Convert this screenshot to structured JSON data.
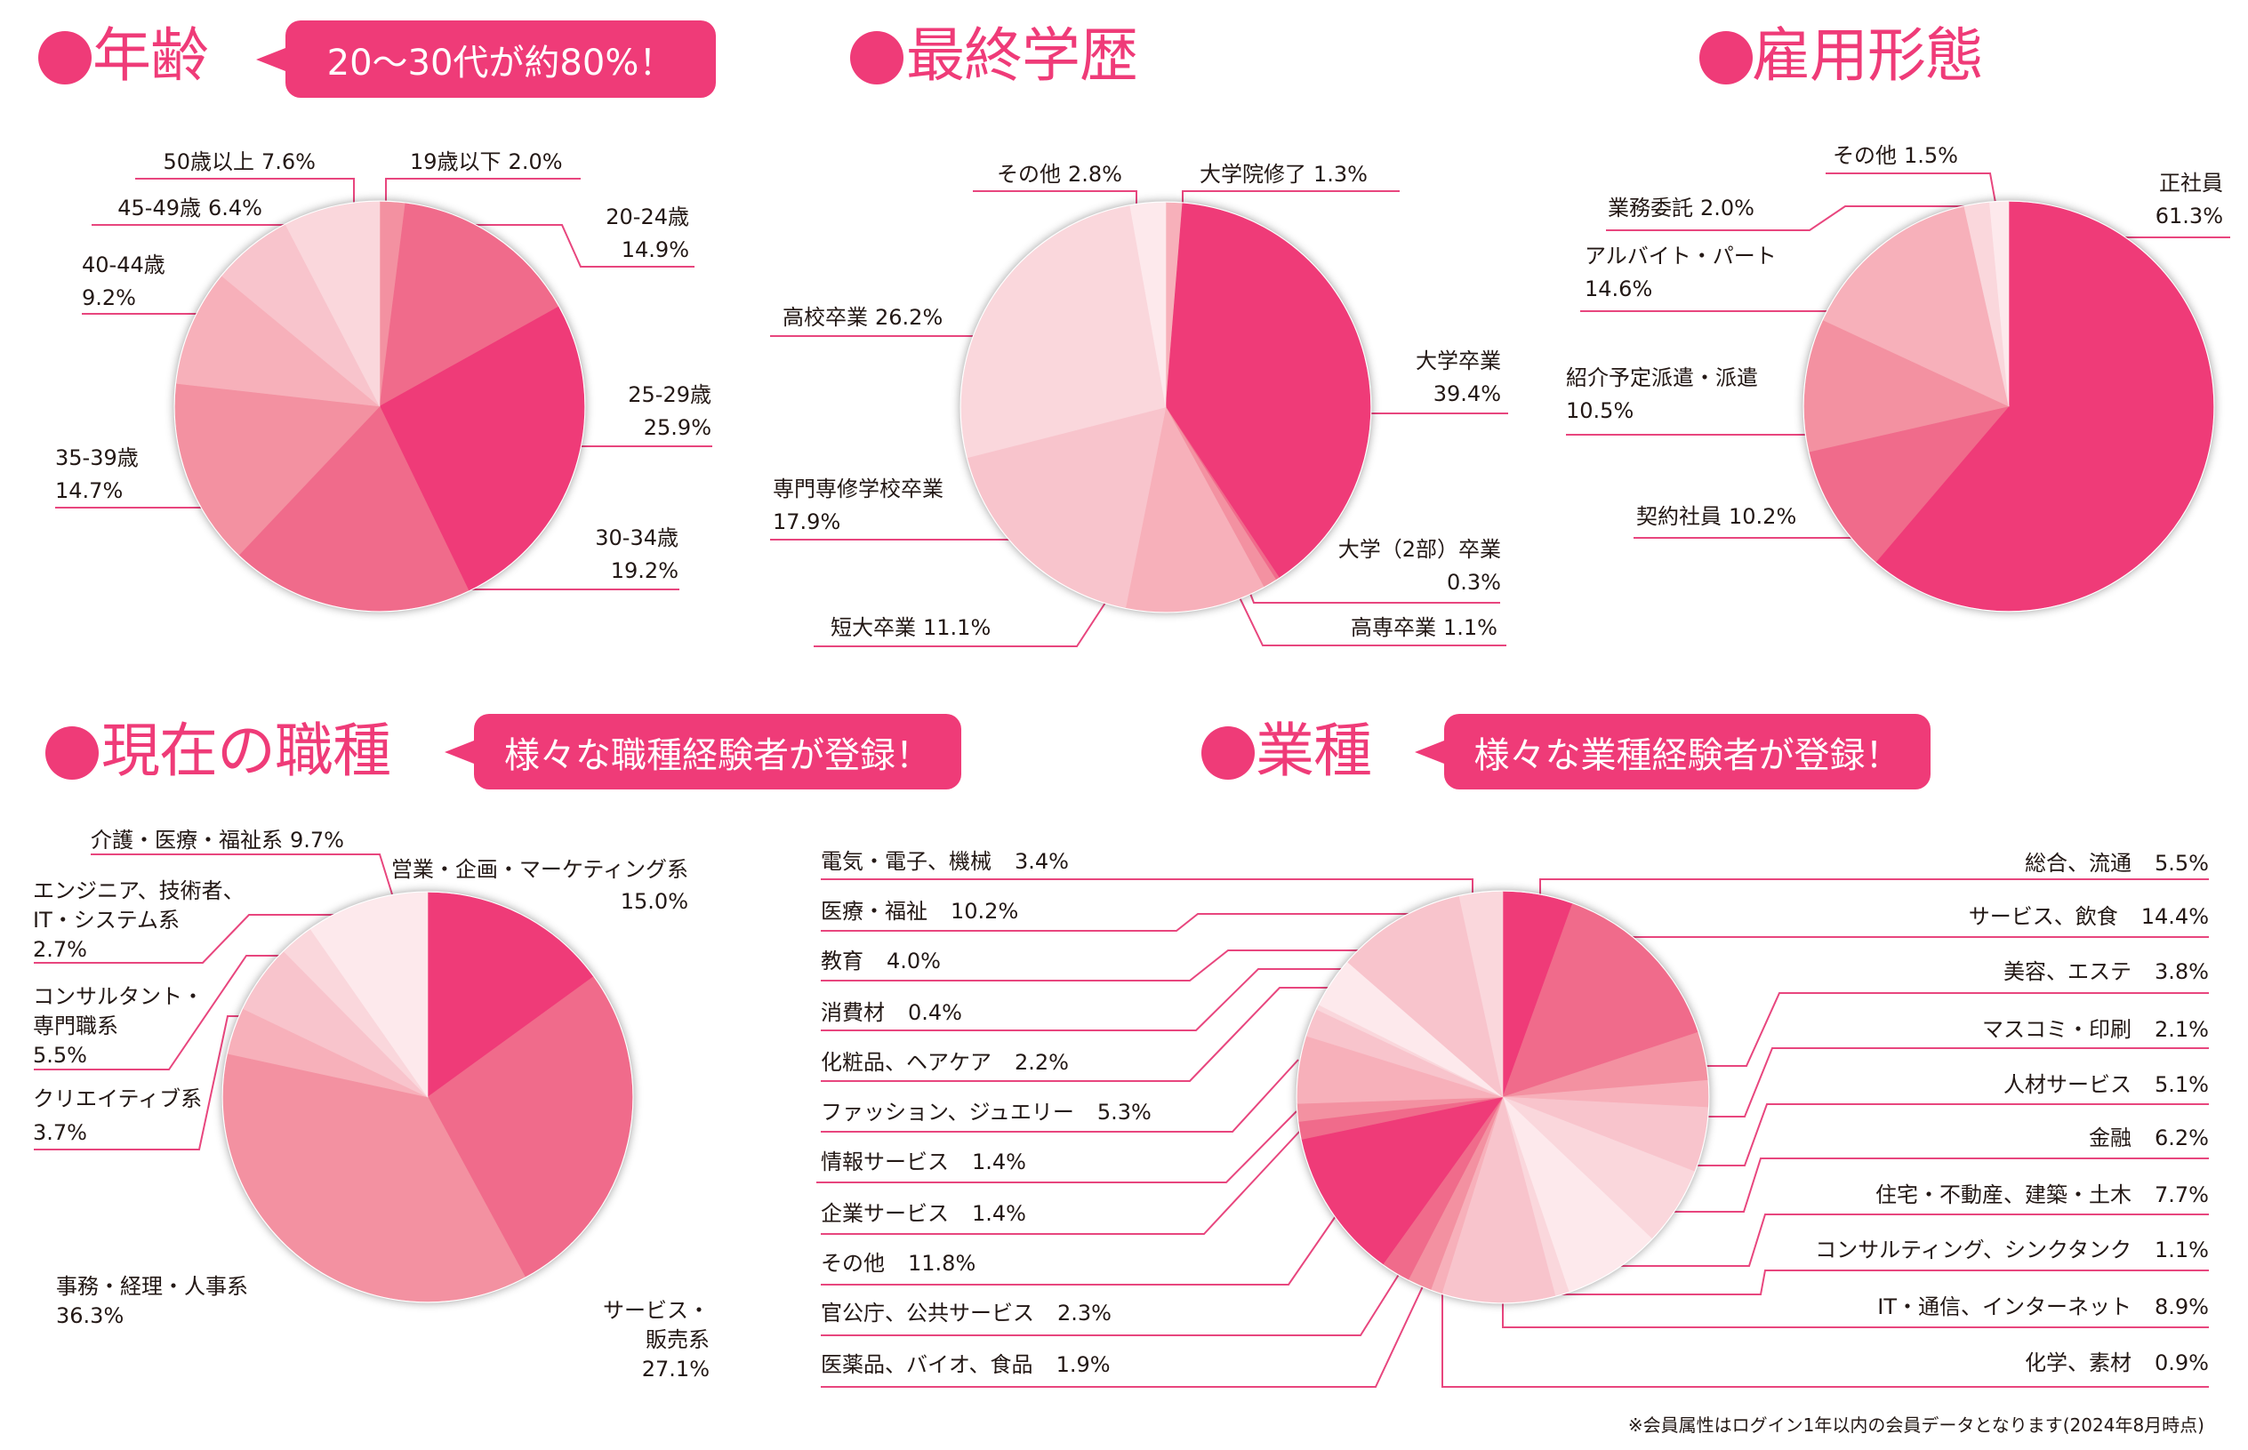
{
  "footnote": "※会員属性はログイン1年以内の会員データとなります(2024年8月時点)",
  "colors": {
    "accent": "#ef3b78",
    "leader_line": "#e8467e",
    "text": "#231815",
    "callout_text": "#ffffff"
  },
  "chart_data": [
    {
      "type": "pie",
      "title": "年齢",
      "callout": "20～30代が約80%！",
      "start": "top",
      "direction": "clockwise",
      "unit": "%",
      "slices": [
        {
          "label": "19歳以下",
          "value": 2.0,
          "value_text": "2.0%",
          "color": "#f391a1"
        },
        {
          "label": "20-24歳",
          "value": 14.9,
          "value_text": "14.9%",
          "color": "#f06b8b"
        },
        {
          "label": "25-29歳",
          "value": 25.9,
          "value_text": "25.9%",
          "color": "#ef3b78"
        },
        {
          "label": "30-34歳",
          "value": 19.2,
          "value_text": "19.2%",
          "color": "#f06b8b"
        },
        {
          "label": "35-39歳",
          "value": 14.7,
          "value_text": "14.7%",
          "color": "#f391a1"
        },
        {
          "label": "40-44歳",
          "value": 9.2,
          "value_text": "9.2%",
          "color": "#f7b0ba"
        },
        {
          "label": "45-49歳",
          "value": 6.4,
          "value_text": "6.4%",
          "color": "#f8c4cc"
        },
        {
          "label": "50歳以上",
          "value": 7.6,
          "value_text": "7.6%",
          "color": "#fad7dc"
        }
      ]
    },
    {
      "type": "pie",
      "title": "最終学歴",
      "start": "top",
      "direction": "clockwise",
      "unit": "%",
      "slices": [
        {
          "label": "大学院修了",
          "value": 1.3,
          "value_text": "1.3%",
          "color": "#f7b0ba"
        },
        {
          "label": "大学卒業",
          "value": 39.4,
          "value_text": "39.4%",
          "color": "#ef3b78"
        },
        {
          "label": "大学（2部）卒業",
          "value": 0.3,
          "value_text": "0.3%",
          "color": "#f06b8b"
        },
        {
          "label": "高専卒業",
          "value": 1.1,
          "value_text": "1.1%",
          "color": "#f391a1"
        },
        {
          "label": "短大卒業",
          "value": 11.1,
          "value_text": "11.1%",
          "color": "#f7b0ba"
        },
        {
          "label": "専門専修学校卒業",
          "value": 17.9,
          "value_text": "17.9%",
          "color": "#f8c4cc"
        },
        {
          "label": "高校卒業",
          "value": 26.2,
          "value_text": "26.2%",
          "color": "#fad7dc"
        },
        {
          "label": "その他",
          "value": 2.8,
          "value_text": "2.8%",
          "color": "#fde9ec"
        }
      ]
    },
    {
      "type": "pie",
      "title": "雇用形態",
      "start": "top",
      "direction": "clockwise",
      "unit": "%",
      "slices": [
        {
          "label": "正社員",
          "value": 61.3,
          "value_text": "61.3%",
          "color": "#ef3b78"
        },
        {
          "label": "契約社員",
          "value": 10.2,
          "value_text": "10.2%",
          "color": "#f06b8b"
        },
        {
          "label": "紹介予定派遣・派遣",
          "value": 10.5,
          "value_text": "10.5%",
          "color": "#f391a1"
        },
        {
          "label": "アルバイト・パート",
          "value": 14.6,
          "value_text": "14.6%",
          "color": "#f7b0ba"
        },
        {
          "label": "業務委託",
          "value": 2.0,
          "value_text": "2.0%",
          "color": "#fad7dc"
        },
        {
          "label": "その他",
          "value": 1.5,
          "value_text": "1.5%",
          "color": "#fde9ec"
        }
      ]
    },
    {
      "type": "pie",
      "title": "現在の職種",
      "callout": "様々な職種経験者が登録！",
      "start": "top",
      "direction": "clockwise",
      "unit": "%",
      "slices": [
        {
          "label": "営業・企画・マーケティング系",
          "value": 15.0,
          "value_text": "15.0%",
          "color": "#ef3b78"
        },
        {
          "label": "サービス・\n販売系",
          "value": 27.1,
          "value_text": "27.1%",
          "color": "#f06b8b"
        },
        {
          "label": "事務・経理・人事系",
          "value": 36.3,
          "value_text": "36.3%",
          "color": "#f391a1"
        },
        {
          "label": "クリエイティブ系",
          "value": 3.7,
          "value_text": "3.7%",
          "color": "#f7b0ba"
        },
        {
          "label": "コンサルタント・\n専門職系",
          "value": 5.5,
          "value_text": "5.5%",
          "color": "#f8c4cc"
        },
        {
          "label": "エンジニア、技術者、\nIT・システム系",
          "value": 2.7,
          "value_text": "2.7%",
          "color": "#fad7dc"
        },
        {
          "label": "介護・医療・福祉系",
          "value": 9.7,
          "value_text": "9.7%",
          "color": "#fde9ec"
        }
      ]
    },
    {
      "type": "pie",
      "title": "業種",
      "callout": "様々な業種経験者が登録！",
      "start": "top",
      "direction": "clockwise",
      "unit": "%",
      "slices": [
        {
          "label": "総合、流通",
          "value": 5.5,
          "value_text": "5.5%",
          "color": "#ef3b78"
        },
        {
          "label": "サービス、飲食",
          "value": 14.4,
          "value_text": "14.4%",
          "color": "#f06b8b"
        },
        {
          "label": "美容、エステ",
          "value": 3.8,
          "value_text": "3.8%",
          "color": "#f391a1"
        },
        {
          "label": "マスコミ・印刷",
          "value": 2.1,
          "value_text": "2.1%",
          "color": "#f7b0ba"
        },
        {
          "label": "人材サービス",
          "value": 5.1,
          "value_text": "5.1%",
          "color": "#f8c4cc"
        },
        {
          "label": "金融",
          "value": 6.2,
          "value_text": "6.2%",
          "color": "#fad7dc"
        },
        {
          "label": "住宅・不動産、建築・土木",
          "value": 7.7,
          "value_text": "7.7%",
          "color": "#fde9ec"
        },
        {
          "label": "コンサルティング、シンクタンク",
          "value": 1.1,
          "value_text": "1.1%",
          "color": "#fad7dc"
        },
        {
          "label": "IT・通信、インターネット",
          "value": 8.9,
          "value_text": "8.9%",
          "color": "#f8c4cc"
        },
        {
          "label": "化学、素材",
          "value": 0.9,
          "value_text": "0.9%",
          "color": "#f7b0ba"
        },
        {
          "label": "医薬品、バイオ、食品",
          "value": 1.9,
          "value_text": "1.9%",
          "color": "#f391a1"
        },
        {
          "label": "官公庁、公共サービス",
          "value": 2.3,
          "value_text": "2.3%",
          "color": "#f06b8b"
        },
        {
          "label": "その他",
          "value": 11.8,
          "value_text": "11.8%",
          "color": "#ef3b78"
        },
        {
          "label": "企業サービス",
          "value": 1.4,
          "value_text": "1.4%",
          "color": "#f06b8b"
        },
        {
          "label": "情報サービス",
          "value": 1.4,
          "value_text": "1.4%",
          "color": "#f391a1"
        },
        {
          "label": "ファッション、ジュエリー",
          "value": 5.3,
          "value_text": "5.3%",
          "color": "#f7b0ba"
        },
        {
          "label": "化粧品、ヘアケア",
          "value": 2.2,
          "value_text": "2.2%",
          "color": "#f8c4cc"
        },
        {
          "label": "消費材",
          "value": 0.4,
          "value_text": "0.4%",
          "color": "#fad7dc"
        },
        {
          "label": "教育",
          "value": 4.0,
          "value_text": "4.0%",
          "color": "#fde9ec"
        },
        {
          "label": "医療・福祉",
          "value": 10.2,
          "value_text": "10.2%",
          "color": "#f8c4cc"
        },
        {
          "label": "電気・電子、機械",
          "value": 3.4,
          "value_text": "3.4%",
          "color": "#fad7dc"
        }
      ]
    }
  ]
}
